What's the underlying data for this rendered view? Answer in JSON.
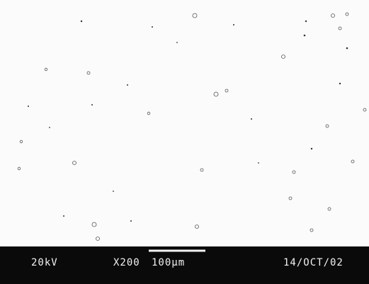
{
  "info_bar": {
    "voltage": "20kV",
    "magnification": "X200",
    "scale": "100µm",
    "date": "14/OCT/02"
  }
}
